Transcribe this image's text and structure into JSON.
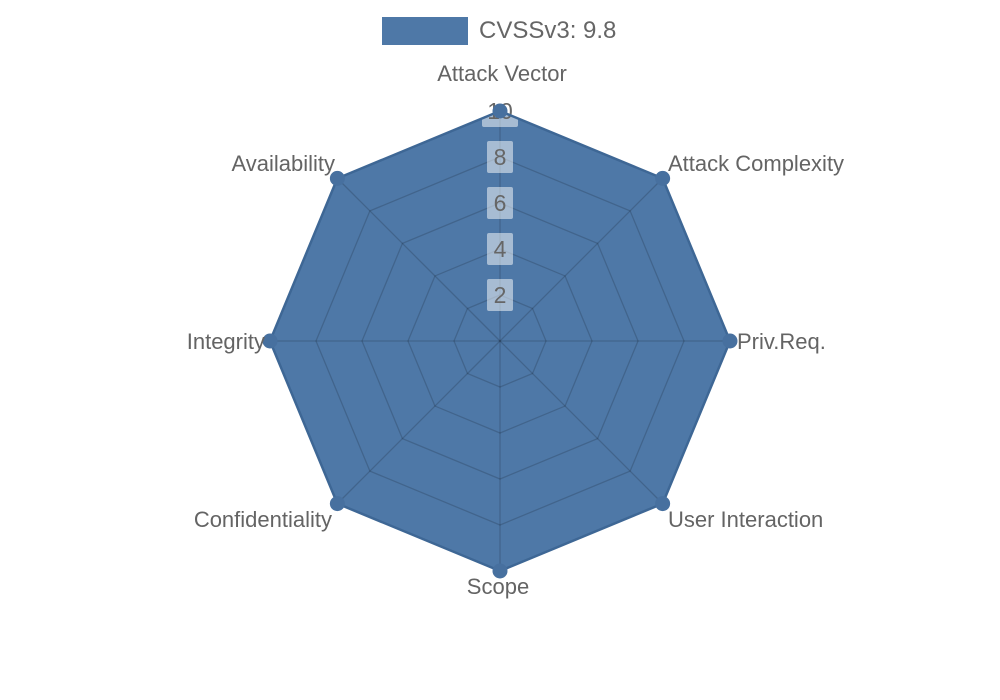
{
  "legend": {
    "label": "CVSSv3: 9.8",
    "swatch_color": "#4e78a7"
  },
  "chart_data": {
    "type": "radar",
    "title": "CVSSv3: 9.8",
    "categories": [
      "Attack Vector",
      "Attack Complexity",
      "Priv.Req.",
      "User Interaction",
      "Scope",
      "Confidentiality",
      "Integrity",
      "Availability"
    ],
    "series": [
      {
        "name": "CVSSv3: 9.8",
        "values": [
          10,
          10,
          10,
          10,
          10,
          10,
          10,
          10
        ]
      }
    ],
    "radial_ticks": [
      2,
      4,
      6,
      8,
      10
    ],
    "rlim": [
      0,
      10
    ],
    "grid": "polygon",
    "grid_on": true,
    "legend_position": "top-center",
    "colors": {
      "fill": "#4e78a7",
      "line": "#3e6795",
      "marker": "#47709f",
      "grid_line": "rgba(0,0,0,0.16)",
      "tick_box": "rgba(255,255,255,0.5)",
      "tick_text": "#666666",
      "axis_text": "#646464"
    }
  }
}
